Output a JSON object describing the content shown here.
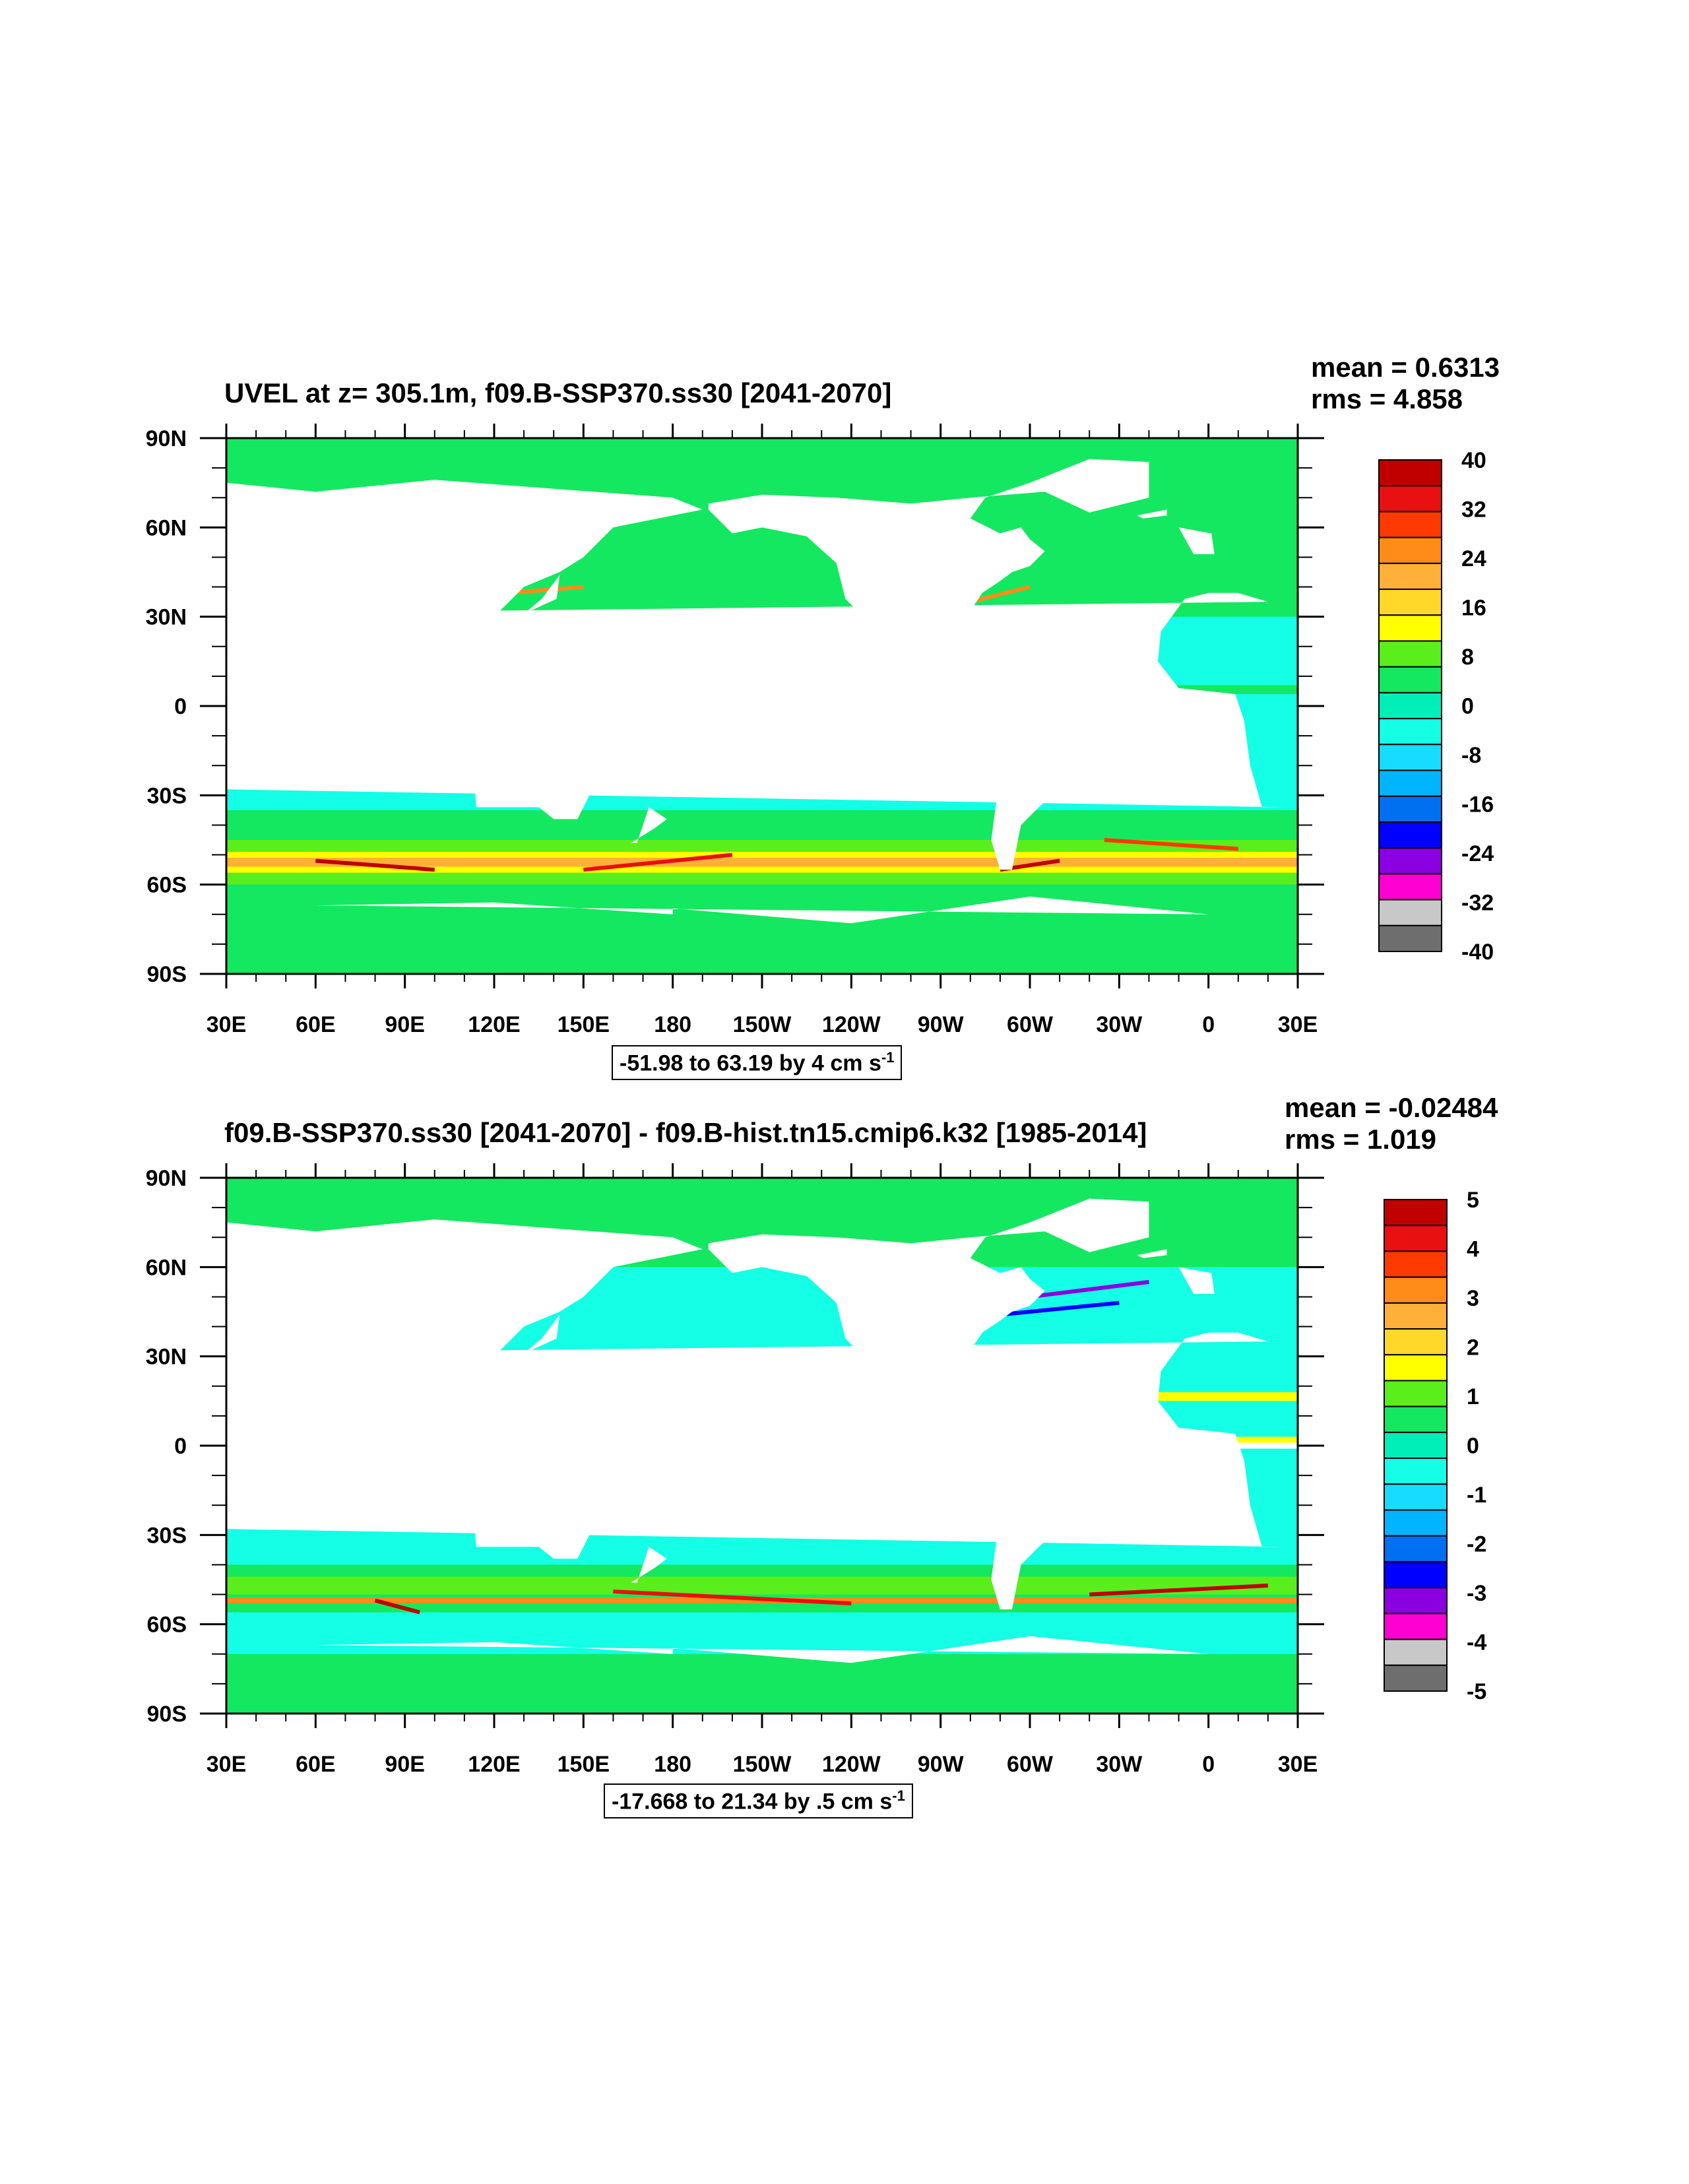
{
  "chart_data": [
    {
      "type": "heatmap",
      "title": "UVEL at z= 305.1m, f09.B-SSP370.ss30 [2041-2070]",
      "stats": {
        "mean": "mean = 0.6313",
        "rms": "rms = 4.858"
      },
      "x_ticks": [
        "30E",
        "60E",
        "90E",
        "120E",
        "150E",
        "180",
        "150W",
        "120W",
        "90W",
        "60W",
        "30W",
        "0",
        "30E"
      ],
      "y_ticks": [
        "90N",
        "60N",
        "30N",
        "0",
        "30S",
        "60S",
        "90S"
      ],
      "xlim": [
        30,
        390
      ],
      "ylim": [
        -90,
        90
      ],
      "colorbar_labels": [
        "40",
        "32",
        "24",
        "16",
        "8",
        "0",
        "-8",
        "-16",
        "-24",
        "-32",
        "-40"
      ],
      "range_text": "-51.98 to 63.19 by 4 cm s",
      "range_exp": "-1"
    },
    {
      "type": "heatmap",
      "title": "f09.B-SSP370.ss30 [2041-2070] - f09.B-hist.tn15.cmip6.k32 [1985-2014]",
      "stats": {
        "mean": "mean = -0.02484",
        "rms": "rms = 1.019"
      },
      "x_ticks": [
        "30E",
        "60E",
        "90E",
        "120E",
        "150E",
        "180",
        "150W",
        "120W",
        "90W",
        "60W",
        "30W",
        "0",
        "30E"
      ],
      "y_ticks": [
        "90N",
        "60N",
        "30N",
        "0",
        "30S",
        "60S",
        "90S"
      ],
      "xlim": [
        30,
        390
      ],
      "ylim": [
        -90,
        90
      ],
      "colorbar_labels": [
        "5",
        "4",
        "3",
        "2",
        "1",
        "0",
        "-1",
        "-2",
        "-3",
        "-4",
        "-5"
      ],
      "range_text": "-17.668 to 21.34 by .5 cm s",
      "range_exp": "-1"
    }
  ],
  "colors": {
    "colorbar": [
      "#c00000",
      "#e81010",
      "#ff3a00",
      "#ff8c18",
      "#ffb038",
      "#ffd82a",
      "#ffff00",
      "#5aee1c",
      "#14e860",
      "#00eeb8",
      "#14ffe6",
      "#18dcff",
      "#00b4ff",
      "#0070f0",
      "#0000ff",
      "#8a00e0",
      "#ff00d2",
      "#c8c8c8",
      "#6e6e6e"
    ],
    "land": "#ffffff",
    "ocean_base": "#14ffe6",
    "ocean_green": "#14e860"
  }
}
